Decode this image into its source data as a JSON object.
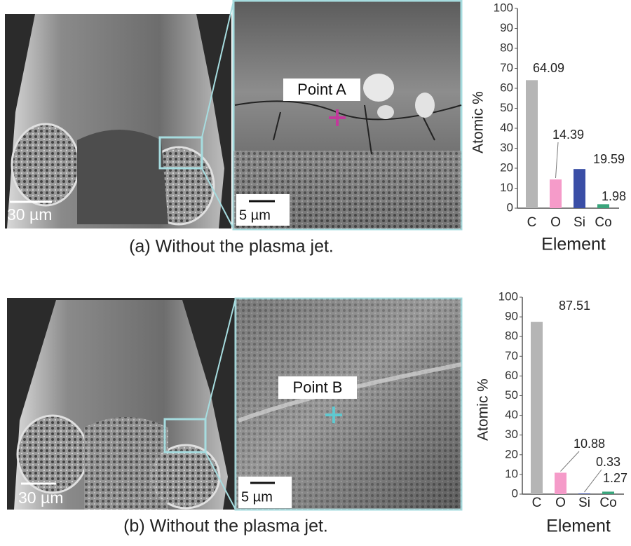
{
  "panels": [
    {
      "caption": "(a) Without the plasma jet.",
      "overview_scale": "30 µm",
      "zoom_scale": "5 µm",
      "point_label": "Point A"
    },
    {
      "caption": "(b) Without the plasma jet.",
      "overview_scale": "30 µm",
      "zoom_scale": "5 µm",
      "point_label": "Point B"
    }
  ],
  "chart_data": [
    {
      "type": "bar",
      "categories": [
        "C",
        "O",
        "Si",
        "Co"
      ],
      "values": [
        64.09,
        14.39,
        19.59,
        1.98
      ],
      "colors": [
        "#b5b5b5",
        "#f59bc9",
        "#3a4ea6",
        "#3aa57c"
      ],
      "ylabel": "Atomic %",
      "xlabel": "Element",
      "ylim": [
        0,
        100
      ],
      "yticks": [
        0,
        10,
        20,
        30,
        40,
        50,
        60,
        70,
        80,
        90,
        100
      ]
    },
    {
      "type": "bar",
      "categories": [
        "C",
        "O",
        "Si",
        "Co"
      ],
      "values": [
        87.51,
        10.88,
        0.33,
        1.27
      ],
      "colors": [
        "#b5b5b5",
        "#f59bc9",
        "#3a4ea6",
        "#3aa57c"
      ],
      "ylabel": "Atomic %",
      "xlabel": "Element",
      "ylim": [
        0,
        100
      ],
      "yticks": [
        0,
        10,
        20,
        30,
        40,
        50,
        60,
        70,
        80,
        90,
        100
      ]
    }
  ]
}
